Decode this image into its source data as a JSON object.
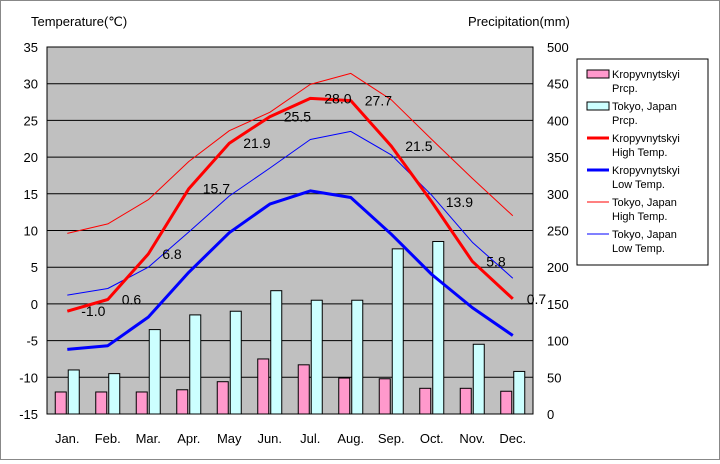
{
  "chart_data": {
    "type": "bar+line",
    "title_left": "Temperature(℃)",
    "title_right": "Precipitation(mm)",
    "categories": [
      "Jan.",
      "Feb.",
      "Mar.",
      "Apr.",
      "May",
      "Jun.",
      "Jul.",
      "Aug.",
      "Sep.",
      "Oct.",
      "Nov.",
      "Dec."
    ],
    "y_left": {
      "min": -15,
      "max": 35,
      "ticks": [
        35,
        30,
        25,
        20,
        15,
        10,
        5,
        0,
        -5,
        -10,
        -15
      ]
    },
    "y_right": {
      "min": 0,
      "max": 500,
      "ticks": [
        500,
        450,
        400,
        350,
        300,
        250,
        200,
        150,
        100,
        50,
        0
      ]
    },
    "bars": [
      {
        "name": "Kropyvnytskyi Prcp.",
        "legend": [
          "Kropyvnytskyi",
          "Prcp."
        ],
        "color": "#ff99cc",
        "values": [
          30,
          30,
          30,
          33,
          44,
          75,
          67,
          49,
          48,
          35,
          35,
          31
        ]
      },
      {
        "name": "Tokyo, Japan Prcp.",
        "legend": [
          "Tokyo, Japan",
          "Prcp."
        ],
        "color": "#ccffff",
        "values": [
          60,
          55,
          115,
          135,
          140,
          168,
          155,
          155,
          225,
          235,
          95,
          58
        ]
      }
    ],
    "lines": [
      {
        "name": "Kropyvnytskyi High Temp.",
        "legend": [
          "Kropyvnytskyi",
          "High Temp."
        ],
        "color": "#ff0000",
        "width": 3,
        "values": [
          -1.0,
          0.6,
          6.8,
          15.7,
          21.9,
          25.5,
          28.0,
          27.7,
          21.5,
          13.9,
          5.8,
          0.7
        ]
      },
      {
        "name": "Kropyvnytskyi Low Temp.",
        "legend": [
          "Kropyvnytskyi",
          "Low Temp."
        ],
        "color": "#0000ff",
        "width": 3,
        "values": [
          -6.2,
          -5.7,
          -1.8,
          4.3,
          9.7,
          13.6,
          15.4,
          14.5,
          9.5,
          4.0,
          -0.5,
          -4.3
        ]
      },
      {
        "name": "Tokyo, Japan High Temp.",
        "legend": [
          "Tokyo, Japan",
          "High Temp."
        ],
        "color": "#ff0000",
        "width": 1,
        "values": [
          9.6,
          10.9,
          14.2,
          19.4,
          23.6,
          26.1,
          29.9,
          31.4,
          27.8,
          22.4,
          17.1,
          12.0
        ]
      },
      {
        "name": "Tokyo, Japan Low Temp.",
        "legend": [
          "Tokyo, Japan",
          "Low Temp."
        ],
        "color": "#0000ff",
        "width": 1,
        "values": [
          1.2,
          2.1,
          5.0,
          9.8,
          14.7,
          18.5,
          22.4,
          23.5,
          20.3,
          14.8,
          8.4,
          3.5
        ]
      }
    ],
    "data_labels": [
      "-1.0",
      "0.6",
      "6.8",
      "15.7",
      "21.9",
      "25.5",
      "28.0",
      "27.7",
      "21.5",
      "13.9",
      "5.8",
      "0.7"
    ],
    "grid": true
  }
}
